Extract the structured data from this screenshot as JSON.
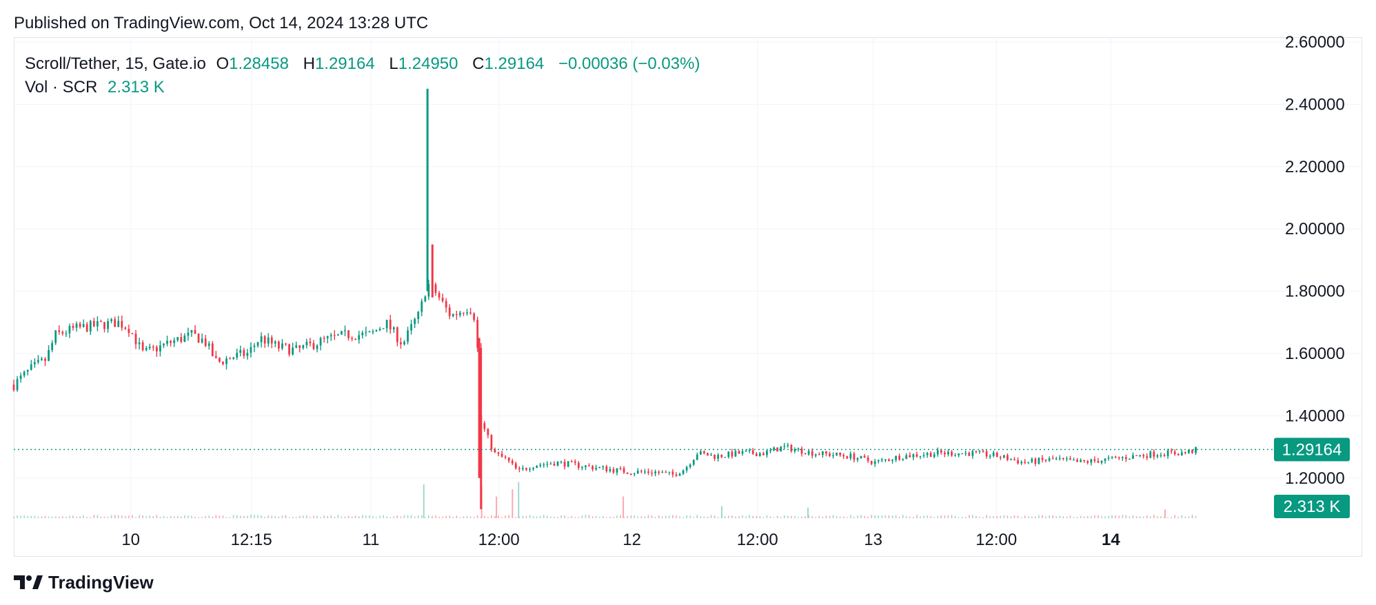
{
  "header": {
    "published": "Published on TradingView.com, Oct 14, 2024 13:28 UTC"
  },
  "legend": {
    "symbol": "Scroll/Tether, 15, Gate.io",
    "o_label": "O",
    "o_value": "1.28458",
    "h_label": "H",
    "h_value": "1.29164",
    "l_label": "L",
    "l_value": "1.24950",
    "c_label": "C",
    "c_value": "1.29164",
    "change": "−0.00036 (−0.03%)",
    "vol_label": "Vol · SCR",
    "vol_value": "2.313 K"
  },
  "brand": {
    "name": "TradingView",
    "icon": "tradingview-logo-icon"
  },
  "colors": {
    "up": "#089981",
    "down": "#f23645",
    "grid": "#f0f3fa",
    "price_line": "#089981",
    "vol_up": "#9fd8cf",
    "vol_down": "#f9a9ae"
  },
  "chart_data": {
    "type": "candlestick",
    "y_axis": {
      "min": 1.1,
      "max": 2.6,
      "position": "right",
      "ticks": [
        2.6,
        2.4,
        2.2,
        2.0,
        1.8,
        1.6,
        1.4,
        1.2
      ],
      "tick_labels": [
        "2.60000",
        "2.40000",
        "2.20000",
        "2.00000",
        "1.80000",
        "1.60000",
        "1.40000",
        "1.20000"
      ]
    },
    "x_axis": {
      "ticks": [
        {
          "label": "10",
          "t": 0.095,
          "bold": false
        },
        {
          "label": "12:15",
          "t": 0.193,
          "bold": false
        },
        {
          "label": "11",
          "t": 0.29,
          "bold": false
        },
        {
          "label": "12:00",
          "t": 0.394,
          "bold": false
        },
        {
          "label": "12",
          "t": 0.502,
          "bold": false
        },
        {
          "label": "12:00",
          "t": 0.604,
          "bold": false
        },
        {
          "label": "13",
          "t": 0.698,
          "bold": false
        },
        {
          "label": "12:00",
          "t": 0.798,
          "bold": false
        },
        {
          "label": "14",
          "t": 0.891,
          "bold": true
        }
      ]
    },
    "last_price": 1.29164,
    "last_price_label": "1.29164",
    "last_volume_label": "2.313 K",
    "grid": true,
    "price_segments": [
      [
        0.0,
        1.5
      ],
      [
        0.014,
        1.55
      ],
      [
        0.026,
        1.58
      ],
      [
        0.034,
        1.66
      ],
      [
        0.05,
        1.68
      ],
      [
        0.085,
        1.7
      ],
      [
        0.094,
        1.68
      ],
      [
        0.105,
        1.6
      ],
      [
        0.118,
        1.62
      ],
      [
        0.13,
        1.64
      ],
      [
        0.145,
        1.66
      ],
      [
        0.155,
        1.64
      ],
      [
        0.165,
        1.57
      ],
      [
        0.178,
        1.59
      ],
      [
        0.19,
        1.6
      ],
      [
        0.2,
        1.65
      ],
      [
        0.215,
        1.62
      ],
      [
        0.23,
        1.61
      ],
      [
        0.25,
        1.64
      ],
      [
        0.27,
        1.66
      ],
      [
        0.29,
        1.66
      ],
      [
        0.302,
        1.7
      ],
      [
        0.316,
        1.63
      ],
      [
        0.325,
        1.7
      ],
      [
        0.33,
        1.73
      ],
      [
        0.333,
        1.79
      ],
      [
        0.337,
        1.82
      ],
      [
        0.342,
        1.8
      ],
      [
        0.355,
        1.72
      ],
      [
        0.37,
        1.75
      ],
      [
        0.374,
        1.72
      ],
      [
        0.377,
        1.6
      ],
      [
        0.379,
        1.38
      ],
      [
        0.383,
        1.35
      ],
      [
        0.39,
        1.28
      ],
      [
        0.4,
        1.26
      ],
      [
        0.41,
        1.22
      ],
      [
        0.42,
        1.24
      ],
      [
        0.44,
        1.25
      ],
      [
        0.46,
        1.24
      ],
      [
        0.48,
        1.23
      ],
      [
        0.5,
        1.22
      ],
      [
        0.52,
        1.22
      ],
      [
        0.535,
        1.21
      ],
      [
        0.545,
        1.23
      ],
      [
        0.555,
        1.28
      ],
      [
        0.57,
        1.27
      ],
      [
        0.59,
        1.28
      ],
      [
        0.61,
        1.28
      ],
      [
        0.625,
        1.3
      ],
      [
        0.65,
        1.28
      ],
      [
        0.68,
        1.27
      ],
      [
        0.7,
        1.25
      ],
      [
        0.72,
        1.27
      ],
      [
        0.75,
        1.28
      ],
      [
        0.78,
        1.28
      ],
      [
        0.8,
        1.27
      ],
      [
        0.82,
        1.25
      ],
      [
        0.845,
        1.26
      ],
      [
        0.865,
        1.25
      ],
      [
        0.89,
        1.26
      ],
      [
        0.91,
        1.27
      ],
      [
        0.93,
        1.28
      ],
      [
        0.95,
        1.28
      ],
      [
        0.96,
        1.29
      ]
    ],
    "spikes": [
      {
        "t": 0.336,
        "high": 2.45,
        "low": 1.8,
        "up": true
      },
      {
        "t": 0.34,
        "high": 1.95,
        "low": 1.78,
        "up": false
      },
      {
        "t": 0.378,
        "high": 1.65,
        "low": 1.2,
        "up": false
      },
      {
        "t": 0.3795,
        "high": 1.4,
        "low": 1.1,
        "up": false
      }
    ],
    "volume_spikes": [
      {
        "t": 0.333,
        "v": 0.7,
        "up": true
      },
      {
        "t": 0.38,
        "v": 0.65,
        "up": false
      },
      {
        "t": 0.41,
        "v": 0.75,
        "up": true
      },
      {
        "t": 0.405,
        "v": 0.6,
        "up": false
      },
      {
        "t": 0.392,
        "v": 0.45,
        "up": false
      },
      {
        "t": 0.495,
        "v": 0.45,
        "up": false
      },
      {
        "t": 0.575,
        "v": 0.25,
        "up": true
      },
      {
        "t": 0.645,
        "v": 0.22,
        "up": true
      },
      {
        "t": 0.935,
        "v": 0.18,
        "up": false
      }
    ]
  }
}
